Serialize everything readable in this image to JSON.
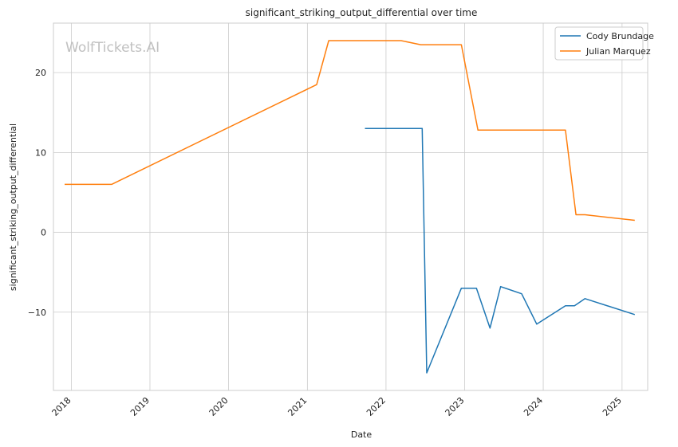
{
  "watermark": "WolfTickets.AI",
  "chart_data": {
    "type": "line",
    "title": "significant_striking_output_differential over time",
    "xlabel": "Date",
    "ylabel": "significant_striking_output_differential",
    "x_axis": {
      "kind": "date",
      "range": [
        "2017-10-10",
        "2025-04-30"
      ],
      "ticks": [
        "2018",
        "2019",
        "2020",
        "2021",
        "2022",
        "2023",
        "2024",
        "2025"
      ]
    },
    "y_axis": {
      "range": [
        -19.8,
        26.2
      ],
      "ticks": [
        -10,
        0,
        10,
        20
      ],
      "tick_labels": [
        "−10",
        "0",
        "10",
        "20"
      ]
    },
    "grid": true,
    "legend_position": "top-right",
    "series": [
      {
        "name": "Cody Brundage",
        "color": "#1f77b4",
        "points": [
          [
            "2021-09-25",
            13.0
          ],
          [
            "2022-06-18",
            13.0
          ],
          [
            "2022-07-09",
            -17.6
          ],
          [
            "2022-12-17",
            -7.0
          ],
          [
            "2023-02-25",
            -7.0
          ],
          [
            "2023-04-29",
            -12.0
          ],
          [
            "2023-06-17",
            -6.8
          ],
          [
            "2023-09-23",
            -7.7
          ],
          [
            "2023-12-02",
            -11.5
          ],
          [
            "2024-04-13",
            -9.2
          ],
          [
            "2024-05-25",
            -9.2
          ],
          [
            "2024-07-13",
            -8.3
          ],
          [
            "2025-03-01",
            -10.3
          ]
        ]
      },
      {
        "name": "Julian Marquez",
        "color": "#ff7f0e",
        "points": [
          [
            "2017-12-01",
            6.0
          ],
          [
            "2018-07-07",
            6.0
          ],
          [
            "2021-02-13",
            18.5
          ],
          [
            "2021-04-10",
            24.0
          ],
          [
            "2022-03-12",
            24.0
          ],
          [
            "2022-06-11",
            23.5
          ],
          [
            "2022-12-17",
            23.5
          ],
          [
            "2023-03-04",
            12.8
          ],
          [
            "2024-04-13",
            12.8
          ],
          [
            "2024-06-01",
            2.2
          ],
          [
            "2024-07-13",
            2.2
          ],
          [
            "2025-03-01",
            1.5
          ]
        ]
      }
    ]
  }
}
